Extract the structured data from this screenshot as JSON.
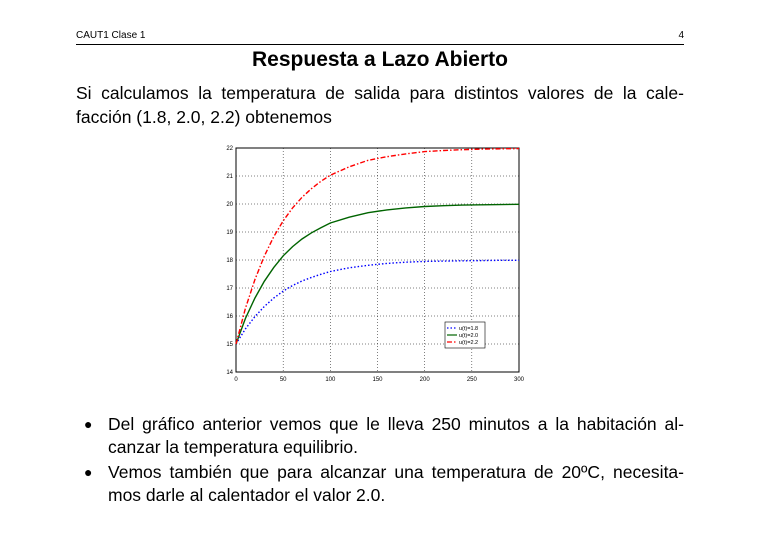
{
  "header": {
    "left": "CAUT1 Clase 1",
    "page_number": "4"
  },
  "title": "Respuesta a Lazo Abierto",
  "intro": {
    "line1": "Si calculamos la temperatura de salida para distintos valores de la cale-",
    "line2": "facción (1.8, 2.0, 2.2) obtenemos"
  },
  "chart_data": {
    "type": "line",
    "xlim": [
      0,
      300
    ],
    "ylim": [
      14,
      22
    ],
    "xticks": [
      0,
      50,
      100,
      150,
      200,
      250,
      300
    ],
    "yticks": [
      14,
      15,
      16,
      17,
      18,
      19,
      20,
      21,
      22
    ],
    "grid": true,
    "legend_position": "bottom-right",
    "x": [
      0,
      10,
      20,
      30,
      40,
      50,
      60,
      70,
      80,
      90,
      100,
      120,
      140,
      160,
      180,
      200,
      220,
      240,
      260,
      280,
      300
    ],
    "series": [
      {
        "name": "u(t)=1.8",
        "color": "#0000ff",
        "style": "dotted",
        "values": [
          15.0,
          15.54,
          15.98,
          16.34,
          16.64,
          16.89,
          17.09,
          17.25,
          17.38,
          17.49,
          17.59,
          17.72,
          17.81,
          17.88,
          17.92,
          17.95,
          17.96,
          17.97,
          17.98,
          17.99,
          17.99
        ]
      },
      {
        "name": "u(t)=2.0",
        "color": "#006400",
        "style": "solid",
        "values": [
          15.0,
          15.91,
          16.64,
          17.24,
          17.73,
          18.15,
          18.48,
          18.75,
          18.97,
          19.15,
          19.32,
          19.53,
          19.69,
          19.79,
          19.86,
          19.91,
          19.94,
          19.96,
          19.97,
          19.98,
          19.99
        ]
      },
      {
        "name": "u(t)=2.2",
        "color": "#ff0000",
        "style": "dashdot",
        "values": [
          15.0,
          16.27,
          17.3,
          18.14,
          18.83,
          19.4,
          19.86,
          20.24,
          20.55,
          20.81,
          21.03,
          21.33,
          21.56,
          21.69,
          21.79,
          21.87,
          21.91,
          21.94,
          21.96,
          21.97,
          21.98
        ]
      }
    ]
  },
  "bullets": [
    {
      "line1": "Del gráfico anterior vemos que le lleva 250 minutos a la habitación al-",
      "line2": "canzar la temperatura equilibrio."
    },
    {
      "line1": "Vemos también que para alcanzar una temperatura de 20ºC, necesita-",
      "line2": "mos darle al calentador el valor 2.0."
    }
  ]
}
